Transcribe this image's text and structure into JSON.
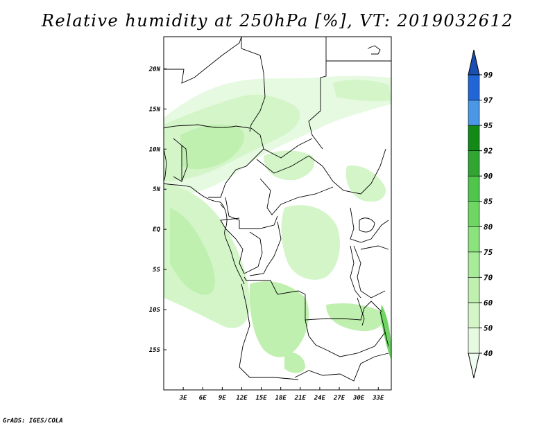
{
  "title": "Relative humidity at 250hPa [%], VT: 2019032612",
  "footer": "GrADS: IGES/COLA",
  "map": {
    "lon_range": [
      0,
      35
    ],
    "lat_range": [
      -20,
      24
    ],
    "lon_ticks": [
      "3E",
      "6E",
      "9E",
      "12E",
      "15E",
      "18E",
      "21E",
      "24E",
      "27E",
      "30E",
      "33E"
    ],
    "lat_ticks": [
      "20N",
      "15N",
      "10N",
      "5N",
      "EQ",
      "5S",
      "10S",
      "15S"
    ]
  },
  "colorbar": {
    "levels": [
      "40",
      "50",
      "60",
      "70",
      "75",
      "80",
      "85",
      "90",
      "92",
      "95",
      "97",
      "99"
    ],
    "colors": [
      "#f0fcf0",
      "#e6f9e1",
      "#d3f5c8",
      "#c0f0b0",
      "#a8eb9b",
      "#8ce37e",
      "#6fd664",
      "#4fc54c",
      "#31a532",
      "#138a17",
      "#4a97e6",
      "#2166d6",
      "#1a4fb2"
    ]
  }
}
